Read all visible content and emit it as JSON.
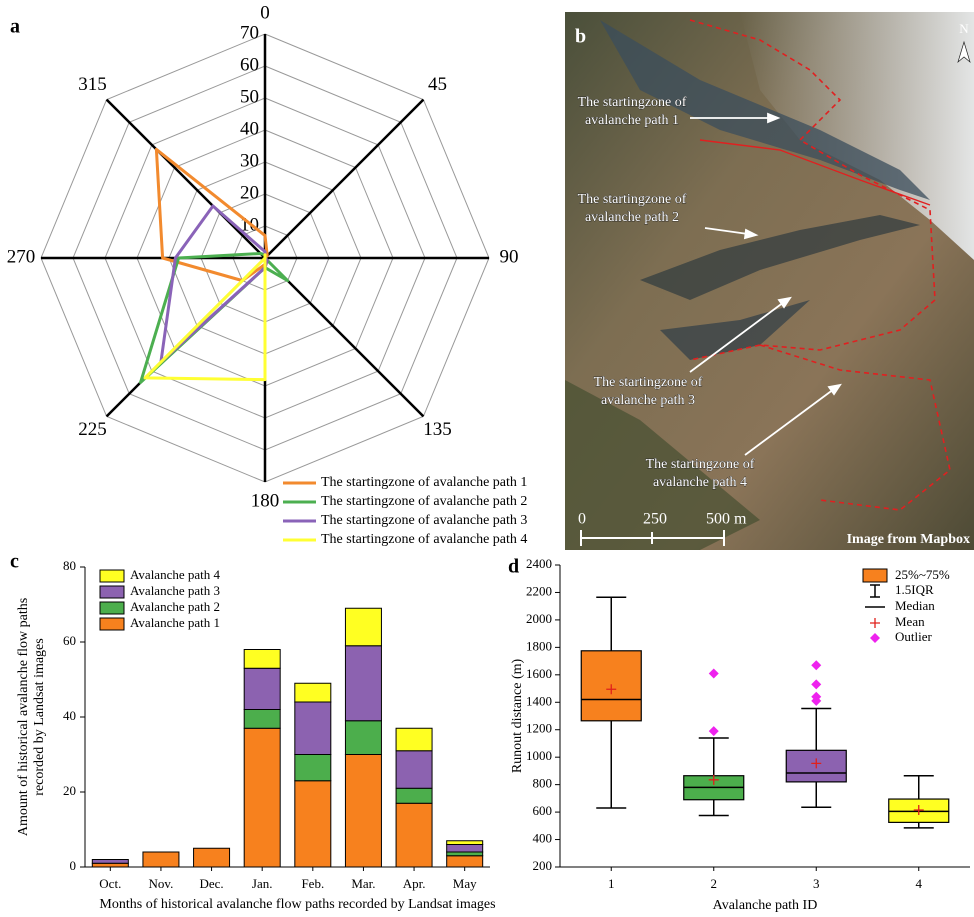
{
  "chart_data": [
    {
      "type": "radar",
      "panel_label": "a",
      "categories": [
        0,
        45,
        90,
        135,
        180,
        225,
        270,
        315
      ],
      "rlim": [
        0,
        70
      ],
      "rticks": [
        10,
        20,
        30,
        40,
        50,
        60,
        70
      ],
      "series": [
        {
          "name": "The startingzone of avalanche path 1",
          "color": "#f28a2e",
          "values": [
            7,
            1,
            0,
            0,
            2,
            10,
            32,
            48
          ]
        },
        {
          "name": "The startingzone of avalanche path 2",
          "color": "#4caf50",
          "values": [
            1,
            0,
            0,
            10,
            3,
            55,
            27,
            2
          ]
        },
        {
          "name": "The startingzone of avalanche path 3",
          "color": "#8a63b8",
          "values": [
            2,
            0,
            0,
            1,
            3,
            46,
            28,
            23
          ]
        },
        {
          "name": "The startingzone of avalanche path 4",
          "color": "#ffff33",
          "values": [
            1,
            0,
            0,
            0,
            38,
            53,
            0,
            0
          ]
        }
      ]
    },
    {
      "type": "stacked_bar",
      "panel_label": "c",
      "xlabel": "Months of historical avalanche flow paths recorded by Landsat images",
      "ylabel": [
        "Amount of historical avalanche flow paths",
        "recorded by Landsat images"
      ],
      "categories": [
        "Oct.",
        "Nov.",
        "Dec.",
        "Jan.",
        "Feb.",
        "Mar.",
        "Apr.",
        "May"
      ],
      "ylim": [
        0,
        80
      ],
      "yticks": [
        0,
        20,
        40,
        60,
        80
      ],
      "series": [
        {
          "name": "Avalanche path 1",
          "color": "#f7811e",
          "values": [
            1,
            4,
            5,
            37,
            23,
            30,
            17,
            3
          ]
        },
        {
          "name": "Avalanche path 2",
          "color": "#4cae4c",
          "values": [
            0,
            0,
            0,
            5,
            7,
            9,
            4,
            1
          ]
        },
        {
          "name": "Avalanche path 3",
          "color": "#8c62b0",
          "values": [
            1,
            0,
            0,
            11,
            14,
            20,
            10,
            2
          ]
        },
        {
          "name": "Avalanche path 4",
          "color": "#ffff22",
          "values": [
            0,
            0,
            0,
            5,
            5,
            10,
            6,
            1
          ]
        }
      ]
    },
    {
      "type": "box",
      "panel_label": "d",
      "xlabel": "Avalanche path ID",
      "ylabel": "Runout distance (m)",
      "categories": [
        "1",
        "2",
        "3",
        "4"
      ],
      "ylim": [
        200,
        2400
      ],
      "yticks": [
        200,
        400,
        600,
        800,
        1000,
        1200,
        1400,
        1600,
        1800,
        2000,
        2200,
        2400
      ],
      "boxes": [
        {
          "color": "#f7811e",
          "whisker_low": 630,
          "q1": 1265,
          "median": 1420,
          "q3": 1775,
          "whisker_high": 2165,
          "mean": 1495,
          "outliers": []
        },
        {
          "color": "#4cae4c",
          "whisker_low": 575,
          "q1": 690,
          "median": 780,
          "q3": 865,
          "whisker_high": 1140,
          "mean": 835,
          "outliers": [
            1190,
            1610
          ]
        },
        {
          "color": "#8c62b0",
          "whisker_low": 635,
          "q1": 820,
          "median": 885,
          "q3": 1050,
          "whisker_high": 1355,
          "mean": 955,
          "outliers": [
            1410,
            1440,
            1530,
            1670
          ]
        },
        {
          "color": "#ffff22",
          "whisker_low": 485,
          "q1": 525,
          "median": 605,
          "q3": 695,
          "whisker_high": 865,
          "mean": 615,
          "outliers": []
        }
      ],
      "legend": {
        "box": "25%~75%",
        "whisker": "1.5IQR",
        "median": "Median",
        "mean": "Mean",
        "outlier": "Outlier"
      }
    }
  ],
  "image_panel": {
    "panel_label": "b",
    "north": "N",
    "labels": [
      [
        "The startingzone of",
        "avalanche path 1"
      ],
      [
        "The startingzone of",
        "avalanche path 2"
      ],
      [
        "The startingzone of",
        "avalanche path 3"
      ],
      [
        "The startingzone of",
        "avalanche path 4"
      ]
    ],
    "scale": [
      "0",
      "250",
      "500 m"
    ],
    "credit": "Image from Mapbox"
  }
}
